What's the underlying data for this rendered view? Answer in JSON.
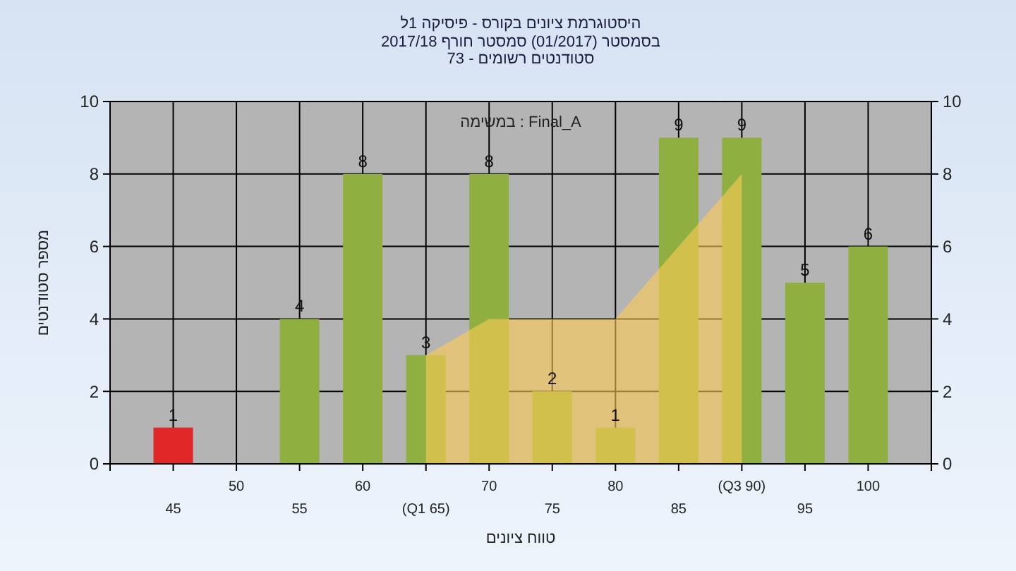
{
  "chart_data": {
    "type": "bar",
    "title": "היסטוגרמת ציונים בקורס - פיסיקה 1ל",
    "subtitle": "בסמסטר  (01/2017)  סמסטר חורף 2017/18\nסטודנטים רשומים - 73",
    "xlabel": "טווח ציונים",
    "ylabel": "מספר סטודנטים",
    "annotations": [
      "במשימה : Final_A"
    ],
    "categories": [
      "45",
      "50",
      "55",
      "60",
      "(Q1 65)",
      "70",
      "75",
      "80",
      "85",
      "(Q3 90)",
      "95",
      "100"
    ],
    "series": [
      {
        "type": "area",
        "color": "#ffcc55",
        "values": [
          null,
          null,
          null,
          null,
          3,
          4,
          4,
          4,
          6,
          8,
          null,
          null
        ]
      },
      {
        "colors": [
          "#e02828",
          "#8fb040",
          "#8fb040",
          "#8fb040",
          "#8fb040",
          "#8fb040",
          "#8fb040",
          "#8fb040",
          "#8fb040",
          "#8fb040",
          "#8fb040",
          "#8fb040"
        ],
        "values": [
          1,
          0,
          4,
          8,
          3,
          8,
          2,
          1,
          9,
          9,
          5,
          6
        ],
        "value_labels": [
          "1",
          null,
          "4",
          "8",
          "3",
          "8",
          "2",
          "1",
          "9",
          "9",
          "5",
          "6"
        ]
      }
    ],
    "ylim": [
      0,
      10
    ],
    "yticks": [
      0,
      2,
      4,
      6,
      8,
      10
    ],
    "y2lim": [
      0,
      10
    ],
    "y2ticks": [
      0,
      2,
      4,
      6,
      8,
      10
    ],
    "grid": true
  }
}
